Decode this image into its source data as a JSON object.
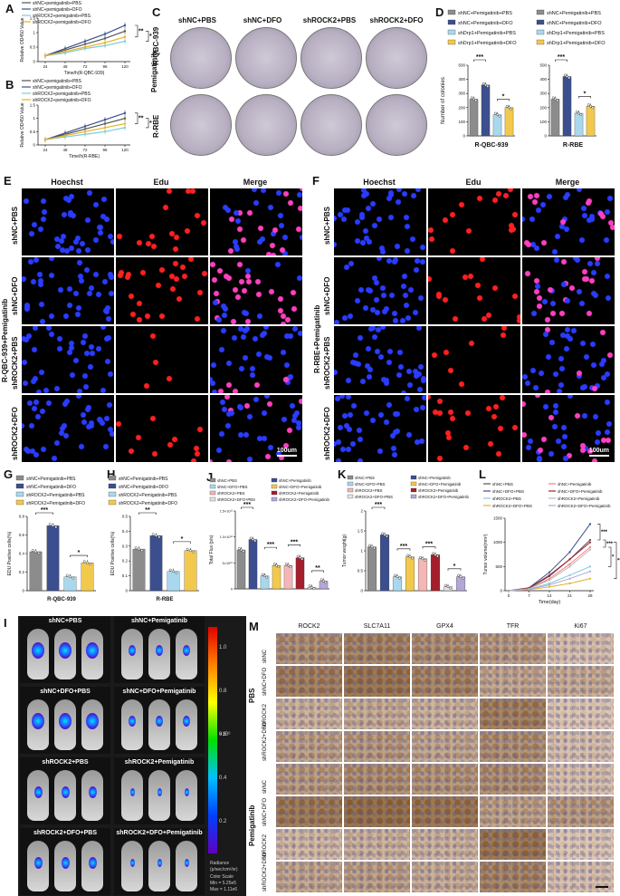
{
  "figure": {
    "panels": {
      "A": "A",
      "B": "B",
      "C": "C",
      "D": "D",
      "E": "E",
      "F": "F",
      "G": "G",
      "H": "H",
      "I": "I",
      "J": "J",
      "K": "K",
      "L": "L",
      "M": "M"
    },
    "panel_A": {
      "legend": [
        "shNC+pemigatinib+PBS",
        "shNC+pemigatinib+DFO",
        "shROCK2+pemigatinib+PBS",
        "shROCK2+pemigatinib+DFO"
      ],
      "ylabel": "Relative OD450 Value",
      "xlabel": "Time/h(R-QBC-939)",
      "sig": [
        "**",
        "*"
      ]
    },
    "panel_B": {
      "legend": [
        "shNC+pemigatinib+PBS",
        "shNC+pemigatinib+DFO",
        "shROCK2+pemigatinib+PBS",
        "shROCK2+pemigatinib+DFO"
      ],
      "ylabel": "Relative OD450 Value",
      "xlabel": "Time/h(R-RBE)",
      "sig": [
        "**",
        "*"
      ]
    },
    "panel_C": {
      "cols": [
        "shNC+PBS",
        "shNC+DFO",
        "shROCK2+PBS",
        "shROCK2+DFO"
      ],
      "rows": [
        "R-QBC-939",
        "R-RBE"
      ],
      "side": "Pemigatinib"
    },
    "panel_D": {
      "legend_left": [
        "shNC+Pemigatinib+PBS",
        "shNC+Pemigatinib+DFO",
        "shDrp1+Pemigatinib+PBS",
        "shDrp1+Pemigatinib+DFO"
      ],
      "legend_right": [
        "shNC+Pemigatinib+PBS",
        "shNC+Pemigatinib+DFO",
        "shDrp1+Pemigatinib+PBS",
        "shDrp1+Pemigatinib+DFO"
      ],
      "ylabel": "Number of colonies",
      "xlabel_left": "R-QBC-939",
      "xlabel_right": "R-RBE",
      "sig": [
        "***",
        "*"
      ]
    },
    "panel_E": {
      "cols": [
        "Hoechst",
        "Edu",
        "Merge"
      ],
      "rows": [
        "shNC+PBS",
        "shNC+DFO",
        "shROCK2+PBS",
        "shROCK2+DFO"
      ],
      "side": "R-QBC-939+Pemigatinib",
      "scale": "100um"
    },
    "panel_F": {
      "cols": [
        "Hoechst",
        "Edu",
        "Merge"
      ],
      "rows": [
        "shNC+PBS",
        "shNC+DFO",
        "shROCK2+PBS",
        "shROCK2+DFO"
      ],
      "side": "R-RBE+Pemigatinib",
      "scale": "100um"
    },
    "panel_G": {
      "legend": [
        "shNC+Pemigatinib+PBS",
        "shNC+Pemigatinib+DFO",
        "shROCK2+Pemigatinib+PBS",
        "shROCK2+Pemigatinib+DFO"
      ],
      "ylabel": "EDU Positive cells(%)",
      "xlabel": "R-QBC-939",
      "sig": [
        "***",
        "*"
      ]
    },
    "panel_H": {
      "legend": [
        "shNC+Pemigatinib+PBS",
        "shNC+Pemigatinib+DFO",
        "shROCK2+Pemigatinib+PBS",
        "shROCK2+Pemigatinib+DFO"
      ],
      "ylabel": "EDU Positive cells(%)",
      "xlabel": "R-RBE",
      "sig": [
        "**",
        "*"
      ]
    },
    "panel_J": {
      "legend": [
        "shNC+PBS",
        "shNC+Pemigatinib",
        "shNC+DFO+PBS",
        "shNC+DFO+Pemigatinib",
        "shROCK2+PBS",
        "shROCK2+Pemigatinib",
        "shROCK2+DFO+PBS",
        "shROCK2+DFO+Pemigatinib"
      ],
      "ylabel": "Total Flux (p/s)",
      "sig": [
        "***",
        "***",
        "***",
        "**"
      ]
    },
    "panel_K": {
      "legend": [
        "shNC+PBS",
        "shNC+Pemigatinib",
        "shNC+DFO+PBS",
        "shNC+DFO+Pemigatinib",
        "shROCK2+PBS",
        "shROCK2+Pemigatinib",
        "shROCK2+DFO+PBS",
        "shROCK2+DFO+Pemigatinib"
      ],
      "ylabel": "Tumor weight(g)",
      "sig": [
        "***",
        "***",
        "***",
        "*"
      ]
    },
    "panel_L": {
      "legend": [
        "shNC+PBS",
        "shNC+Pemigatinib",
        "shNC+DFO+PBS",
        "shNC+DFO+Pemigatinib",
        "shROCK2+PBS",
        "shROCK2+Pemigatinib",
        "shROCK2+DFO+PBS",
        "shROCK2+DFO+Pemigatinib"
      ],
      "ylabel": "Tumor volume(mm³)",
      "xlabel": "Time(day)",
      "sig": [
        "***",
        "***",
        "*",
        "***"
      ]
    },
    "panel_I": {
      "labels": [
        "shNC+PBS",
        "shNC+Pemigatinib",
        "shNC+DFO+PBS",
        "shNC+DFO+Pemigatinib",
        "shROCK2+PBS",
        "shROCK2+Pemigatinib",
        "shROCK2+DFO+PBS",
        "shROCK2+DFO+Pemigatinib"
      ],
      "colorbar_exp": "×10⁶",
      "colorbar_ticks": [
        "1.0",
        "0.8",
        "0.6",
        "0.4",
        "0.2"
      ],
      "colorbar_title": "Radiance",
      "colorbar_units": "(p/sec/cm²/sr)",
      "color_scale": [
        "Color Scale",
        "Min = 5.25e5",
        "Max = 1.11e6"
      ]
    },
    "panel_M": {
      "cols": [
        "ROCK2",
        "SLC7A11",
        "GPX4",
        "TFR",
        "Ki67"
      ],
      "rows": [
        "shNC",
        "shNC+DFO",
        "shROCK2",
        "shROCK2+DFO",
        "shNC",
        "shNC+DFO",
        "shROCK2",
        "shROCK2+DFO"
      ],
      "groups": [
        "PBS",
        "Pemigatinib"
      ]
    }
  },
  "chart_data": [
    {
      "type": "line",
      "panel": "A",
      "x": [
        24,
        48,
        72,
        96,
        120
      ],
      "xlabel": "Time/h(R-QBC-939)",
      "ylabel": "Relative OD450 Value",
      "ylim": [
        0,
        1.5
      ],
      "yticks": [
        0,
        0.5,
        1.0,
        1.5
      ],
      "series": [
        {
          "name": "shNC+pemigatinib+PBS",
          "values": [
            0.2,
            0.4,
            0.6,
            0.8,
            1.05
          ],
          "color": "#555555"
        },
        {
          "name": "shNC+pemigatinib+DFO",
          "values": [
            0.2,
            0.45,
            0.7,
            0.95,
            1.25
          ],
          "color": "#3b4f8f"
        },
        {
          "name": "shROCK2+pemigatinib+PBS",
          "values": [
            0.2,
            0.3,
            0.45,
            0.55,
            0.7
          ],
          "color": "#7fc8e0"
        },
        {
          "name": "shROCK2+pemigatinib+DFO",
          "values": [
            0.2,
            0.35,
            0.5,
            0.65,
            0.85
          ],
          "color": "#e6b422"
        }
      ]
    },
    {
      "type": "line",
      "panel": "B",
      "x": [
        24,
        48,
        72,
        96,
        120
      ],
      "xlabel": "Time/h(R-RBE)",
      "ylabel": "Relative OD450 Value",
      "ylim": [
        0,
        1.5
      ],
      "yticks": [
        0,
        0.5,
        1.0,
        1.5
      ],
      "series": [
        {
          "name": "shNC+pemigatinib+PBS",
          "values": [
            0.2,
            0.4,
            0.6,
            0.8,
            1.0
          ],
          "color": "#555555"
        },
        {
          "name": "shNC+pemigatinib+DFO",
          "values": [
            0.2,
            0.45,
            0.7,
            0.95,
            1.2
          ],
          "color": "#3b4f8f"
        },
        {
          "name": "shROCK2+pemigatinib+PBS",
          "values": [
            0.2,
            0.3,
            0.4,
            0.5,
            0.65
          ],
          "color": "#7fc8e0"
        },
        {
          "name": "shROCK2+pemigatinib+DFO",
          "values": [
            0.2,
            0.35,
            0.5,
            0.65,
            0.8
          ],
          "color": "#e6b422"
        }
      ]
    },
    {
      "type": "bar",
      "panel": "D-left",
      "xlabel": "R-QBC-939",
      "ylabel": "Number of colonies",
      "ylim": [
        0,
        500
      ],
      "yticks": [
        0,
        100,
        200,
        300,
        400,
        500
      ],
      "values": [
        260,
        360,
        150,
        200
      ],
      "colors": [
        "#8c8c8c",
        "#3b4f8f",
        "#a9d8ee",
        "#f2c94c"
      ]
    },
    {
      "type": "bar",
      "panel": "D-right",
      "xlabel": "R-RBE",
      "ylim": [
        0,
        500
      ],
      "yticks": [
        0,
        100,
        200,
        300,
        400,
        500
      ],
      "values": [
        260,
        420,
        160,
        210
      ],
      "colors": [
        "#8c8c8c",
        "#3b4f8f",
        "#a9d8ee",
        "#f2c94c"
      ]
    },
    {
      "type": "bar",
      "panel": "G",
      "xlabel": "R-QBC-939",
      "ylabel": "EDU Positive cells(%)",
      "ylim": [
        0,
        0.8
      ],
      "yticks": [
        0,
        0.2,
        0.4,
        0.6,
        0.8
      ],
      "values": [
        0.42,
        0.7,
        0.15,
        0.3
      ],
      "colors": [
        "#8c8c8c",
        "#3b4f8f",
        "#a9d8ee",
        "#f2c94c"
      ]
    },
    {
      "type": "bar",
      "panel": "H",
      "xlabel": "R-RBE",
      "ylabel": "EDU Positive cells(%)",
      "ylim": [
        0,
        0.5
      ],
      "yticks": [
        0,
        0.1,
        0.2,
        0.3,
        0.4,
        0.5
      ],
      "values": [
        0.28,
        0.37,
        0.13,
        0.27
      ],
      "colors": [
        "#8c8c8c",
        "#3b4f8f",
        "#a9d8ee",
        "#f2c94c"
      ]
    },
    {
      "type": "bar",
      "panel": "J",
      "ylabel": "Total Flux (p/s)",
      "ylim": [
        0,
        15
      ],
      "yticks": [
        0,
        5,
        10,
        15
      ],
      "ytick_labels": [
        "0",
        "5×10¹⁰",
        "1.0×10¹¹",
        "1.5×10¹¹"
      ],
      "values": [
        7.5,
        9.5,
        2.5,
        4.5,
        4.5,
        6,
        0.3,
        1.5
      ],
      "colors": [
        "#8c8c8c",
        "#3b4f8f",
        "#a9d8ee",
        "#f2c94c",
        "#f4b6b6",
        "#a31f2b",
        "#e3e3e3",
        "#b4a7d6"
      ]
    },
    {
      "type": "bar",
      "panel": "K",
      "ylabel": "Tumor weight(g)",
      "ylim": [
        0,
        2.0
      ],
      "yticks": [
        0,
        0.5,
        1.0,
        1.5,
        2.0
      ],
      "values": [
        1.1,
        1.4,
        0.35,
        0.85,
        0.8,
        0.9,
        0.1,
        0.35
      ],
      "colors": [
        "#8c8c8c",
        "#3b4f8f",
        "#a9d8ee",
        "#f2c94c",
        "#f4b6b6",
        "#a31f2b",
        "#e3e3e3",
        "#b4a7d6"
      ]
    },
    {
      "type": "line",
      "panel": "L",
      "x": [
        0,
        7,
        14,
        21,
        28
      ],
      "xlabel": "Time(day)",
      "ylabel": "Tumor volume(mm³)",
      "ylim": [
        0,
        1500
      ],
      "yticks": [
        0,
        500,
        1000,
        1500
      ],
      "series": [
        {
          "name": "shNC+PBS",
          "values": [
            0,
            50,
            300,
            650,
            1050
          ],
          "color": "#555555"
        },
        {
          "name": "shNC+Pemigatinib",
          "values": [
            0,
            40,
            250,
            550,
            900
          ],
          "color": "#f08080"
        },
        {
          "name": "shNC+DFO+PBS",
          "values": [
            0,
            60,
            380,
            800,
            1380
          ],
          "color": "#3b4f8f"
        },
        {
          "name": "shNC+DFO+Pemigatinib",
          "values": [
            0,
            55,
            320,
            650,
            1000
          ],
          "color": "#a31f2b"
        },
        {
          "name": "shROCK2+PBS",
          "values": [
            0,
            30,
            150,
            320,
            500
          ],
          "color": "#7fc8e0"
        },
        {
          "name": "shROCK2+Pemigatinib",
          "values": [
            0,
            40,
            220,
            500,
            850
          ],
          "color": "#b8b8b8"
        },
        {
          "name": "shROCK2+DFO+PBS",
          "values": [
            0,
            20,
            80,
            150,
            250
          ],
          "color": "#e6b422"
        },
        {
          "name": "shROCK2+DFO+Pemigatinib",
          "values": [
            0,
            25,
            120,
            250,
            400
          ],
          "color": "#b4a7d6"
        }
      ]
    }
  ]
}
